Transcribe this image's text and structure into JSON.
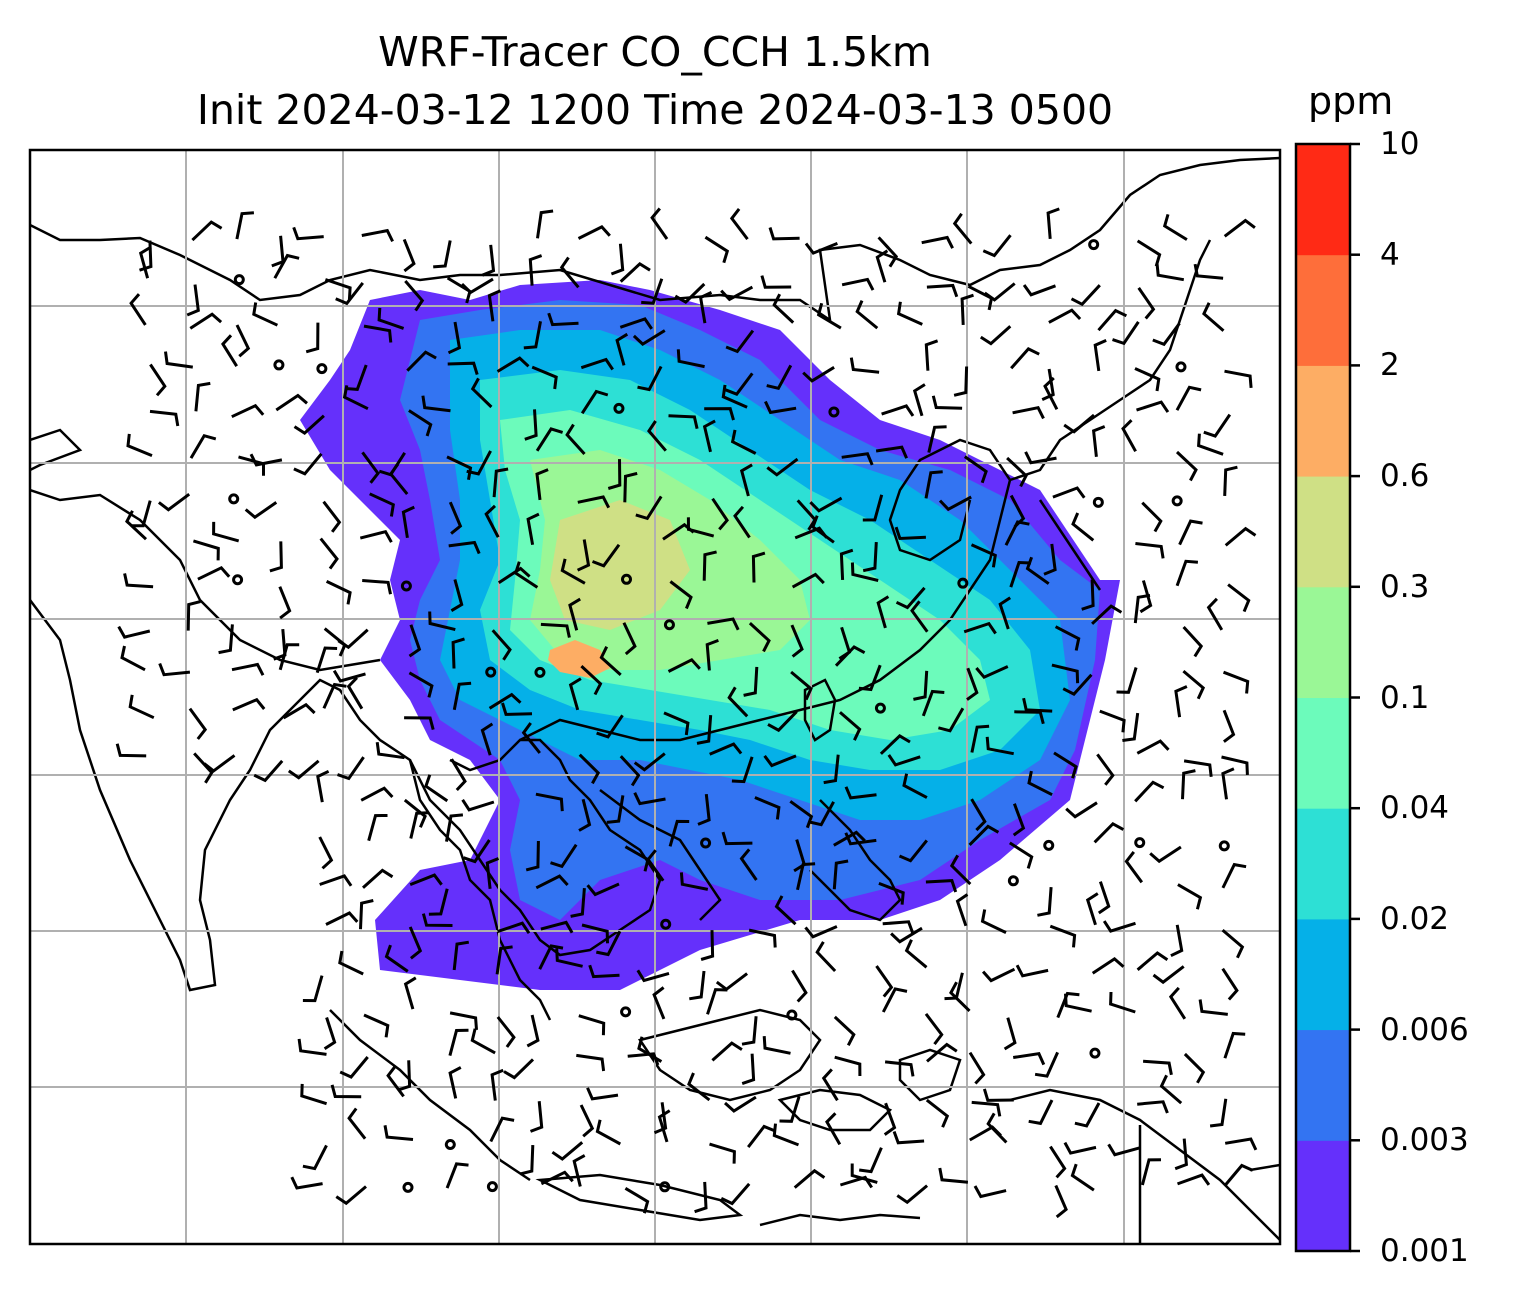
{
  "title": {
    "line1": "WRF-Tracer CO_CCH 1.5km",
    "line2": "Init 2024-03-12 1200 Time 2024-03-13 0500"
  },
  "colorbar": {
    "unit": "ppm",
    "levels": [
      "0.001",
      "0.003",
      "0.006",
      "0.02",
      "0.04",
      "0.1",
      "0.3",
      "0.6",
      "2",
      "4",
      "10"
    ],
    "colors": [
      "#6530fb",
      "#3374f2",
      "#05b0e8",
      "#2de0d5",
      "#6cfbbb",
      "#9af796",
      "#cfe085",
      "#fdad64",
      "#fe6e3a",
      "#ff2a15"
    ]
  },
  "map": {
    "gridline_color": "#b0b0b0",
    "coastline_color": "#000000",
    "plume_core_level": "0.6"
  }
}
